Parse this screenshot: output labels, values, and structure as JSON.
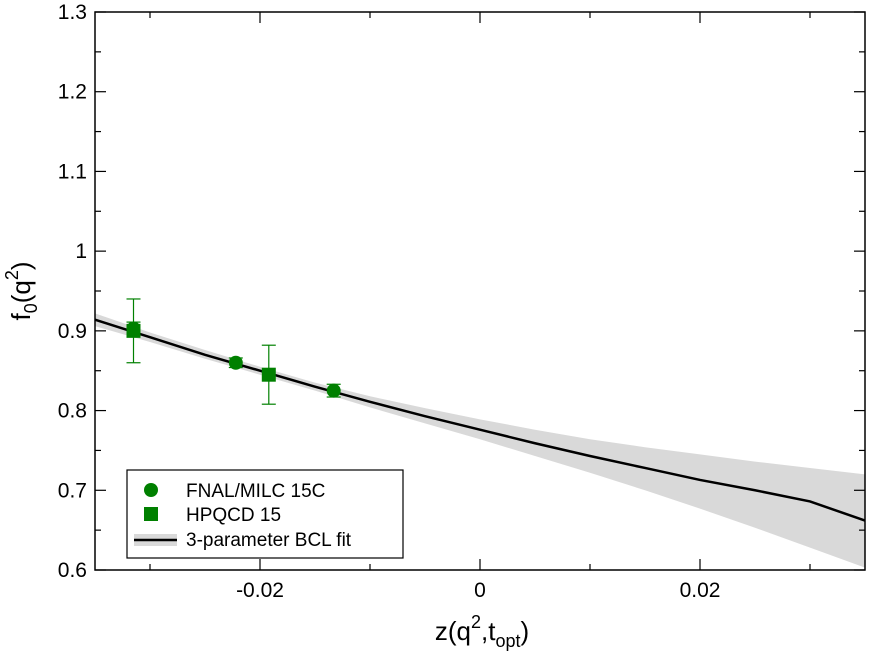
{
  "chart_data": {
    "type": "scatter",
    "xlim": [
      -0.035,
      0.035
    ],
    "ylim": [
      0.6,
      1.3
    ],
    "x_ticks": [
      -0.02,
      0,
      0.02
    ],
    "x_tick_labels": [
      "-0.02",
      "0",
      "0.02"
    ],
    "y_ticks": [
      0.6,
      0.7,
      0.8,
      0.9,
      1.0,
      1.1,
      1.2,
      1.3
    ],
    "y_tick_labels": [
      "0.6",
      "0.7",
      "0.8",
      "0.9",
      "1",
      "1.1",
      "1.2",
      "1.3"
    ],
    "xlabel": {
      "base": "z(q",
      "sup": "2",
      "mid": ",t",
      "sub": "opt",
      "end": ")"
    },
    "ylabel": {
      "base": "f",
      "sub": "0",
      "mid": "(q",
      "sup": "2",
      "end": ")"
    },
    "grid": false,
    "legend_position": "bottom-left",
    "series": [
      {
        "name": "FNAL/MILC 15C",
        "marker": "circle",
        "color": "#008000",
        "points": [
          {
            "x": -0.0315,
            "y": 0.903,
            "yerr": 0.008
          },
          {
            "x": -0.0222,
            "y": 0.86,
            "yerr": 0.006
          },
          {
            "x": -0.0133,
            "y": 0.825,
            "yerr": 0.008
          }
        ]
      },
      {
        "name": "HPQCD 15",
        "marker": "square",
        "color": "#008000",
        "points": [
          {
            "x": -0.0315,
            "y": 0.9,
            "yerr": 0.04
          },
          {
            "x": -0.0192,
            "y": 0.845,
            "yerr": 0.037
          }
        ]
      },
      {
        "name": "3-parameter BCL fit",
        "type": "line",
        "color": "#000000",
        "band_color": "#d9d9d9",
        "points": [
          {
            "x": -0.035,
            "y": 0.914,
            "lo": 0.906,
            "hi": 0.922
          },
          {
            "x": -0.03,
            "y": 0.892,
            "lo": 0.886,
            "hi": 0.898
          },
          {
            "x": -0.025,
            "y": 0.87,
            "lo": 0.865,
            "hi": 0.876
          },
          {
            "x": -0.02,
            "y": 0.85,
            "lo": 0.845,
            "hi": 0.855
          },
          {
            "x": -0.015,
            "y": 0.83,
            "lo": 0.825,
            "hi": 0.835
          },
          {
            "x": -0.01,
            "y": 0.811,
            "lo": 0.804,
            "hi": 0.818
          },
          {
            "x": -0.005,
            "y": 0.793,
            "lo": 0.784,
            "hi": 0.803
          },
          {
            "x": 0.0,
            "y": 0.776,
            "lo": 0.764,
            "hi": 0.789
          },
          {
            "x": 0.005,
            "y": 0.759,
            "lo": 0.743,
            "hi": 0.776
          },
          {
            "x": 0.01,
            "y": 0.743,
            "lo": 0.722,
            "hi": 0.764
          },
          {
            "x": 0.015,
            "y": 0.728,
            "lo": 0.7,
            "hi": 0.754
          },
          {
            "x": 0.02,
            "y": 0.713,
            "lo": 0.677,
            "hi": 0.745
          },
          {
            "x": 0.025,
            "y": 0.7,
            "lo": 0.653,
            "hi": 0.736
          },
          {
            "x": 0.03,
            "y": 0.686,
            "lo": 0.628,
            "hi": 0.728
          },
          {
            "x": 0.035,
            "y": 0.662,
            "lo": 0.603,
            "hi": 0.72
          }
        ]
      }
    ]
  }
}
